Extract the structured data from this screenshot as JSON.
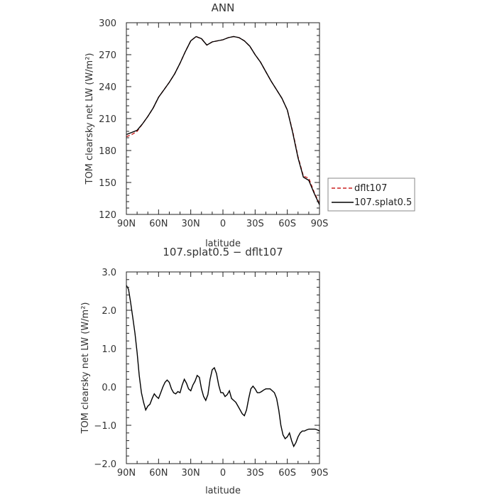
{
  "chart_data": [
    {
      "type": "line",
      "title": "ANN",
      "xlabel": "latitude",
      "ylabel": "TOM clearsky net LW (W/m²)",
      "xlim": [
        90,
        -90
      ],
      "ylim": [
        120,
        300
      ],
      "xticks": [
        90,
        60,
        30,
        0,
        -30,
        -60,
        -90
      ],
      "xtick_labels": [
        "90N",
        "60N",
        "30N",
        "0",
        "30S",
        "60S",
        "90S"
      ],
      "yticks": [
        120,
        150,
        180,
        210,
        240,
        270,
        300
      ],
      "ytick_labels": [
        "120",
        "150",
        "180",
        "210",
        "240",
        "270",
        "300"
      ],
      "legend_position": "right",
      "series": [
        {
          "name": "dflt107",
          "color": "#cc2222",
          "dash": "dashed",
          "x": [
            90,
            85,
            80,
            75,
            70,
            65,
            60,
            55,
            50,
            45,
            40,
            35,
            30,
            25,
            20,
            15,
            10,
            5,
            0,
            -5,
            -10,
            -15,
            -20,
            -25,
            -30,
            -35,
            -40,
            -45,
            -50,
            -55,
            -60,
            -65,
            -70,
            -75,
            -80,
            -85,
            -90
          ],
          "y": [
            193,
            195,
            198,
            205,
            212,
            220,
            230,
            237,
            244,
            252,
            262,
            273,
            283,
            287,
            285,
            279,
            282,
            283,
            284,
            286,
            287,
            286,
            283,
            278,
            270,
            263,
            254,
            245,
            237,
            229,
            218,
            198,
            174,
            156,
            154,
            141,
            130
          ]
        },
        {
          "name": "107.splat0.5",
          "color": "#000000",
          "dash": "solid",
          "x": [
            90,
            85,
            80,
            75,
            70,
            65,
            60,
            55,
            50,
            45,
            40,
            35,
            30,
            25,
            20,
            15,
            10,
            5,
            0,
            -5,
            -10,
            -15,
            -20,
            -25,
            -30,
            -35,
            -40,
            -45,
            -50,
            -55,
            -60,
            -65,
            -70,
            -75,
            -80,
            -85,
            -90
          ],
          "y": [
            195,
            197,
            199,
            205,
            212,
            220,
            230,
            237,
            244,
            252,
            262,
            273,
            283,
            287,
            285,
            279,
            282,
            283,
            284,
            286,
            287,
            286,
            283,
            278,
            270,
            263,
            254,
            245,
            237,
            229,
            218,
            197,
            173,
            155,
            152,
            140,
            129
          ]
        }
      ]
    },
    {
      "type": "line",
      "title": "107.splat0.5 − dflt107",
      "xlabel": "latitude",
      "ylabel": "TOM clearsky net LW (W/m²)",
      "xlim": [
        90,
        -90
      ],
      "ylim": [
        -2.0,
        3.0
      ],
      "xticks": [
        90,
        60,
        30,
        0,
        -30,
        -60,
        -90
      ],
      "xtick_labels": [
        "90N",
        "60N",
        "30N",
        "0",
        "30S",
        "60S",
        "90S"
      ],
      "yticks": [
        -2,
        -1,
        0,
        1,
        2,
        3
      ],
      "ytick_labels": [
        "−2.0",
        "−1.0",
        "0.0",
        "1.0",
        "2.0",
        "3.0"
      ],
      "series": [
        {
          "name": "",
          "color": "#000000",
          "dash": "solid",
          "x": [
            90,
            88,
            86,
            84,
            82,
            80,
            78,
            76,
            74,
            72,
            70,
            68,
            66,
            64,
            62,
            60,
            58,
            56,
            54,
            52,
            50,
            48,
            46,
            44,
            42,
            40,
            38,
            36,
            34,
            32,
            30,
            28,
            26,
            24,
            22,
            20,
            18,
            16,
            14,
            12,
            10,
            8,
            6,
            4,
            2,
            0,
            -2,
            -4,
            -6,
            -8,
            -10,
            -12,
            -14,
            -16,
            -18,
            -20,
            -22,
            -24,
            -26,
            -28,
            -30,
            -32,
            -34,
            -36,
            -38,
            -40,
            -42,
            -44,
            -46,
            -48,
            -50,
            -52,
            -54,
            -56,
            -58,
            -60,
            -62,
            -64,
            -66,
            -68,
            -70,
            -72,
            -74,
            -76,
            -78,
            -80,
            -82,
            -84,
            -86,
            -88,
            -90
          ],
          "y": [
            2.65,
            2.55,
            2.2,
            1.8,
            1.4,
            0.9,
            0.3,
            -0.15,
            -0.4,
            -0.6,
            -0.5,
            -0.45,
            -0.3,
            -0.18,
            -0.25,
            -0.3,
            -0.15,
            0.0,
            0.12,
            0.18,
            0.12,
            -0.05,
            -0.15,
            -0.18,
            -0.12,
            -0.15,
            0.05,
            0.2,
            0.1,
            -0.05,
            -0.1,
            0.05,
            0.15,
            0.3,
            0.25,
            -0.05,
            -0.25,
            -0.35,
            -0.2,
            0.2,
            0.45,
            0.5,
            0.35,
            0.05,
            -0.15,
            -0.15,
            -0.25,
            -0.2,
            -0.1,
            -0.3,
            -0.35,
            -0.4,
            -0.5,
            -0.6,
            -0.7,
            -0.75,
            -0.6,
            -0.3,
            -0.05,
            0.02,
            -0.05,
            -0.15,
            -0.15,
            -0.12,
            -0.08,
            -0.05,
            -0.05,
            -0.05,
            -0.1,
            -0.15,
            -0.3,
            -0.6,
            -1.0,
            -1.25,
            -1.35,
            -1.3,
            -1.2,
            -1.4,
            -1.55,
            -1.45,
            -1.3,
            -1.2,
            -1.15,
            -1.15,
            -1.12,
            -1.1,
            -1.1,
            -1.1,
            -1.1,
            -1.12,
            -1.15
          ]
        }
      ]
    }
  ]
}
